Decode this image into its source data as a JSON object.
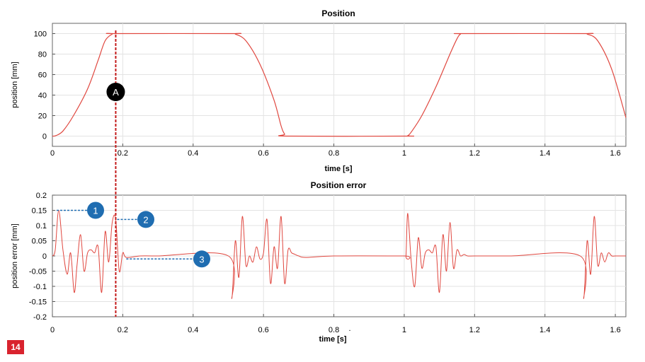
{
  "figure_number": "14",
  "colors": {
    "curve": "#e0473f",
    "marker_line": "#c41a1a",
    "dashed_callout": "#1f6db1",
    "callout_fill": "#1f6db1",
    "marker_a_fill": "#000000",
    "grid": "#e3e3e3",
    "axis": "#555555",
    "plot_bg": "#ffffff"
  },
  "chart_data": [
    {
      "type": "line",
      "title": "Position",
      "xlabel": "time [s]",
      "ylabel": "position [mm]",
      "xlim": [
        0,
        1.63
      ],
      "ylim": [
        -10,
        110
      ],
      "xticks": [
        "0",
        "0.2",
        "0.4",
        "0.6",
        "0.8",
        "1",
        "1.2",
        "1.4",
        "1.6"
      ],
      "yticks": [
        "0",
        "20",
        "40",
        "60",
        "80",
        "100"
      ],
      "grid": true,
      "series": [
        {
          "x": [
            0,
            0.01,
            0.03,
            0.06,
            0.1,
            0.13,
            0.15,
            0.17,
            0.18,
            0.51,
            0.52,
            0.55,
            0.59,
            0.63,
            0.65,
            0.66,
            0.67,
            1.0,
            1.01,
            1.02,
            1.05,
            1.09,
            1.13,
            1.15,
            1.16,
            1.17,
            1.51,
            1.52,
            1.55,
            1.59,
            1.63
          ],
          "y": [
            0,
            0.5,
            5,
            20,
            46,
            74,
            93,
            99.5,
            100,
            100,
            99.5,
            93,
            70,
            35,
            10,
            2,
            0,
            0,
            0.5,
            4,
            20,
            48,
            80,
            95,
            99.5,
            100,
            100,
            99.5,
            93,
            65,
            18
          ]
        }
      ],
      "annotations": [
        {
          "label": "A",
          "x": 0.18
        }
      ]
    },
    {
      "type": "line",
      "title": "Position error",
      "xlabel": "time [s]",
      "ylabel": "position error [mm]",
      "xlim": [
        0,
        1.63
      ],
      "ylim": [
        -0.2,
        0.2
      ],
      "xticks": [
        "0",
        "0.2",
        "0.4",
        "0.6",
        "0.8",
        "1",
        "1.2",
        "1.4",
        "1.6"
      ],
      "yticks": [
        "0.2",
        "0.15",
        "0.1",
        "0.05",
        "0",
        "-0.05",
        "-0.1",
        "-0.15",
        "-0.2"
      ],
      "grid": true,
      "series": [
        {
          "x": [
            0,
            0.008,
            0.018,
            0.03,
            0.042,
            0.052,
            0.062,
            0.07,
            0.08,
            0.09,
            0.1,
            0.11,
            0.12,
            0.13,
            0.14,
            0.15,
            0.16,
            0.17,
            0.18,
            0.19,
            0.2,
            0.21,
            0.25,
            0.3,
            0.5,
            0.51,
            0.52,
            0.53,
            0.54,
            0.55,
            0.56,
            0.57,
            0.58,
            0.59,
            0.6,
            0.61,
            0.62,
            0.63,
            0.64,
            0.65,
            0.66,
            0.67,
            0.68,
            0.69,
            0.7,
            0.72,
            0.8,
            1.0,
            1.005,
            1.01,
            1.02,
            1.03,
            1.04,
            1.05,
            1.06,
            1.07,
            1.08,
            1.09,
            1.1,
            1.11,
            1.12,
            1.13,
            1.14,
            1.15,
            1.16,
            1.17,
            1.18,
            1.2,
            1.3,
            1.5,
            1.51,
            1.52,
            1.53,
            1.54,
            1.55,
            1.56,
            1.57,
            1.58,
            1.59,
            1.6,
            1.61,
            1.62,
            1.63
          ],
          "y": [
            0,
            0.02,
            0.15,
            0.02,
            -0.06,
            0.01,
            -0.12,
            -0.03,
            0.07,
            -0.05,
            0.01,
            0.02,
            0.01,
            0.03,
            -0.12,
            0.08,
            -0.02,
            0.11,
            0.12,
            -0.05,
            0.01,
            -0.005,
            0,
            0,
            0,
            -0.14,
            0.05,
            -0.07,
            0.13,
            -0.03,
            0.0,
            -0.02,
            0.03,
            -0.01,
            0.01,
            0.12,
            -0.09,
            0.03,
            -0.04,
            0.13,
            -0.09,
            0.02,
            0.01,
            0.005,
            0.0,
            -0.005,
            0.0,
            0,
            0.0,
            0.14,
            -0.02,
            -0.1,
            0.06,
            -0.04,
            0.01,
            0.02,
            0.01,
            0.03,
            -0.12,
            0.07,
            -0.05,
            0.11,
            -0.04,
            0.02,
            0.0,
            0.005,
            0,
            0,
            0,
            0,
            -0.14,
            0.05,
            -0.06,
            0.13,
            -0.03,
            0.01,
            -0.02,
            0.01,
            0.0,
            0,
            0,
            0,
            0
          ]
        }
      ],
      "annotations": [
        {
          "label": "1",
          "x": 0.0,
          "y": 0.15
        },
        {
          "label": "2",
          "x": 0.18,
          "y": 0.12
        },
        {
          "label": "3",
          "x": 0.21,
          "y": -0.01
        }
      ],
      "stray_tick_mark": "."
    }
  ]
}
